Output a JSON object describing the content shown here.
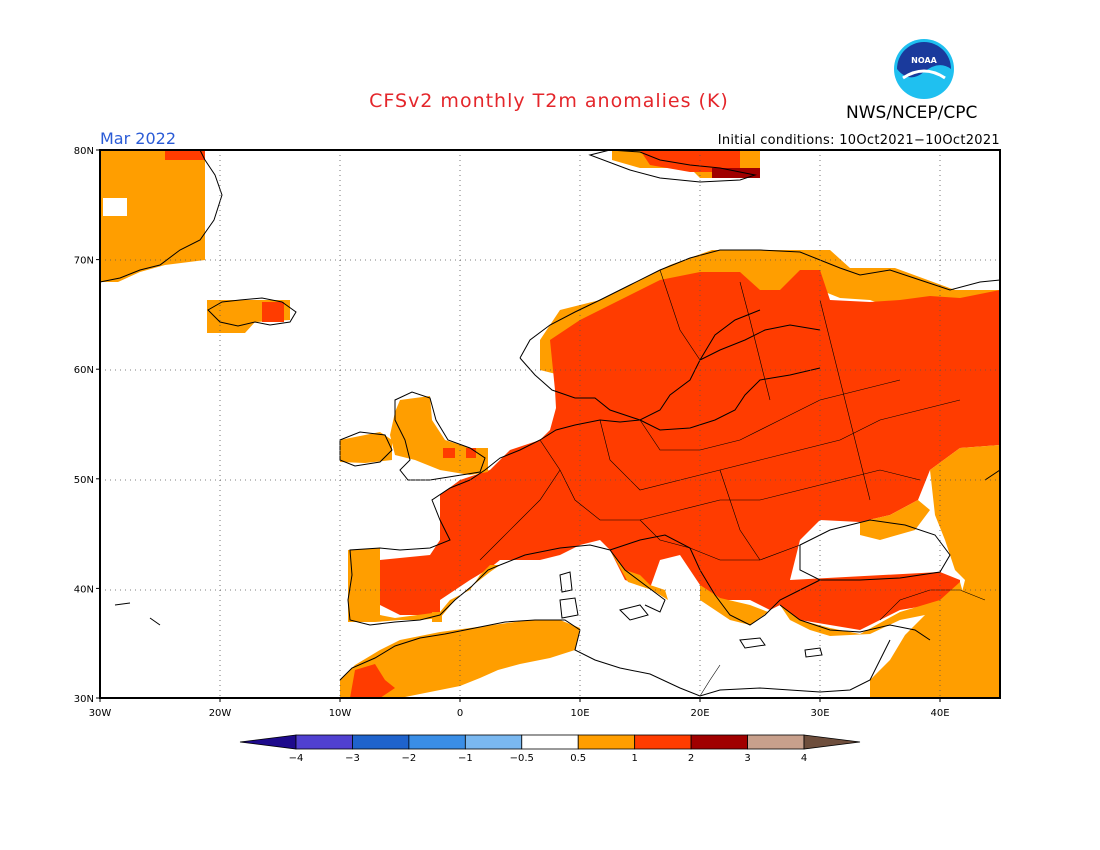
{
  "header": {
    "title": "CFSv2 monthly T2m anomalies (K)",
    "agency": "NWS/NCEP/CPC",
    "period": "Mar 2022",
    "initial_conditions": "Initial conditions: 10Oct2021−10Oct2021",
    "logo_text": "NOAA"
  },
  "map": {
    "lon_range": [
      -30,
      45
    ],
    "lat_range": [
      30,
      80
    ],
    "lat_ticks": [
      "30N",
      "40N",
      "50N",
      "60N",
      "70N",
      "80N"
    ],
    "lon_ticks": [
      "30W",
      "20W",
      "10W",
      "0",
      "10E",
      "20E",
      "30E",
      "40E"
    ],
    "grid": "dotted"
  },
  "colorbar": {
    "labels": [
      "−4",
      "−3",
      "−2",
      "−1",
      "−0.5",
      "0.5",
      "1",
      "2",
      "3",
      "4"
    ],
    "colors": [
      "#1e0a8c",
      "#5040d0",
      "#1f63cc",
      "#3a8ee6",
      "#7ab8f0",
      "#ffffff",
      "#ff9e00",
      "#ff3c00",
      "#a00000",
      "#c8a08c",
      "#6e4e3c"
    ]
  },
  "colors": {
    "anom_05_1": "#ff9e00",
    "anom_1_2": "#ff3c00",
    "anom_2_3": "#a00000",
    "title": "#e4262b",
    "period": "#2a5bd6"
  }
}
